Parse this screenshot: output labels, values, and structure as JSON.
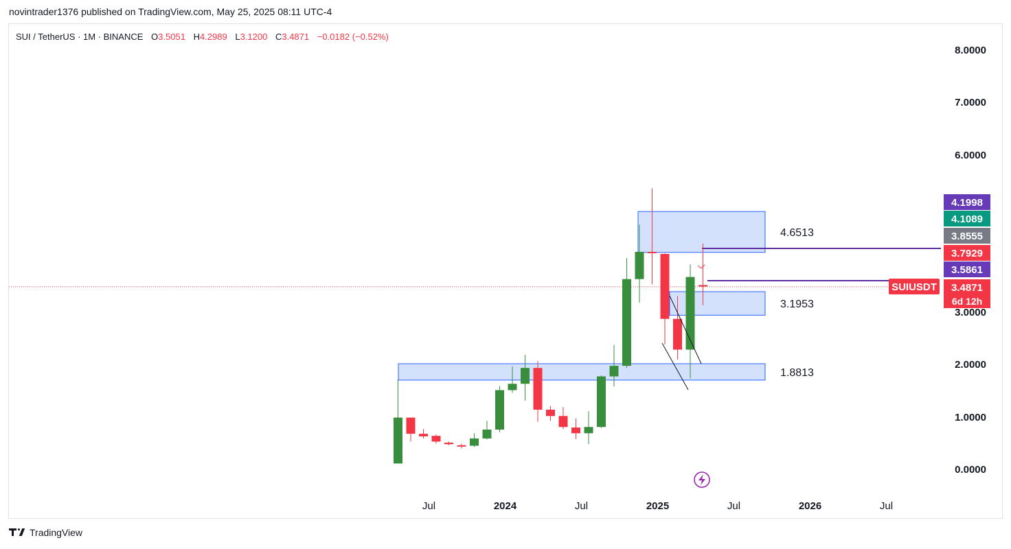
{
  "header": {
    "published": "novintrader1376 published on TradingView.com, May 25, 2025 08:11 UTC-4"
  },
  "legend": {
    "symbol": "SUI / TetherUS · 1M · BINANCE",
    "o_label": "O",
    "o_value": "3.5051",
    "h_label": "H",
    "h_value": "4.2989",
    "l_label": "L",
    "l_value": "3.1200",
    "c_label": "C",
    "c_value": "3.4871",
    "change": "−0.0182 (−0.52%)"
  },
  "footer": {
    "brand": "TradingView"
  },
  "colors": {
    "up": "#388e3c",
    "down": "#f23645",
    "zone_fill": "#cddcfb",
    "zone_border": "#2962ff",
    "line": "#5b2c9f"
  },
  "chart_data": {
    "type": "candlestick",
    "symbol": "SUIUSDT",
    "interval": "1M",
    "yaxis_ticks": [
      0,
      1,
      2,
      3,
      6,
      7,
      8
    ],
    "ytick_labels": [
      "0.0000",
      "1.0000",
      "2.0000",
      "3.0000",
      "6.0000",
      "7.0000",
      "8.0000"
    ],
    "xaxis_ticks": [
      {
        "label": "Jul",
        "date": "2023-07"
      },
      {
        "label": "2024",
        "date": "2024-01"
      },
      {
        "label": "Jul",
        "date": "2024-07"
      },
      {
        "label": "2025",
        "date": "2025-01"
      },
      {
        "label": "Jul",
        "date": "2025-07"
      },
      {
        "label": "2026",
        "date": "2026-01"
      },
      {
        "label": "Jul",
        "date": "2026-07"
      }
    ],
    "candles": [
      {
        "date": "2023-05",
        "o": 0.1,
        "h": 1.7,
        "l": 0.1,
        "c": 0.98
      },
      {
        "date": "2023-06",
        "o": 0.98,
        "h": 0.98,
        "l": 0.52,
        "c": 0.67
      },
      {
        "date": "2023-07",
        "o": 0.67,
        "h": 0.76,
        "l": 0.58,
        "c": 0.62
      },
      {
        "date": "2023-08",
        "o": 0.63,
        "h": 0.66,
        "l": 0.48,
        "c": 0.52
      },
      {
        "date": "2023-09",
        "o": 0.5,
        "h": 0.52,
        "l": 0.45,
        "c": 0.47
      },
      {
        "date": "2023-10",
        "o": 0.45,
        "h": 0.48,
        "l": 0.39,
        "c": 0.44
      },
      {
        "date": "2023-11",
        "o": 0.44,
        "h": 0.68,
        "l": 0.42,
        "c": 0.58
      },
      {
        "date": "2023-12",
        "o": 0.58,
        "h": 0.92,
        "l": 0.56,
        "c": 0.75
      },
      {
        "date": "2024-01",
        "o": 0.75,
        "h": 1.58,
        "l": 0.7,
        "c": 1.5
      },
      {
        "date": "2024-02",
        "o": 1.5,
        "h": 1.95,
        "l": 1.45,
        "c": 1.62
      },
      {
        "date": "2024-03",
        "o": 1.62,
        "h": 2.17,
        "l": 1.3,
        "c": 1.92
      },
      {
        "date": "2024-04",
        "o": 1.92,
        "h": 2.05,
        "l": 0.9,
        "c": 1.13
      },
      {
        "date": "2024-05",
        "o": 1.13,
        "h": 1.2,
        "l": 0.92,
        "c": 1.01
      },
      {
        "date": "2024-06",
        "o": 1.01,
        "h": 1.18,
        "l": 0.76,
        "c": 0.8
      },
      {
        "date": "2024-07",
        "o": 0.79,
        "h": 0.96,
        "l": 0.57,
        "c": 0.68
      },
      {
        "date": "2024-08",
        "o": 0.68,
        "h": 1.1,
        "l": 0.47,
        "c": 0.8
      },
      {
        "date": "2024-09",
        "o": 0.8,
        "h": 1.78,
        "l": 0.78,
        "c": 1.76
      },
      {
        "date": "2024-10",
        "o": 1.76,
        "h": 2.36,
        "l": 1.57,
        "c": 1.96
      },
      {
        "date": "2024-11",
        "o": 1.96,
        "h": 4.02,
        "l": 1.92,
        "c": 3.62
      },
      {
        "date": "2024-12",
        "o": 3.62,
        "h": 4.66,
        "l": 3.17,
        "c": 4.14
      },
      {
        "date": "2025-01",
        "o": 4.14,
        "h": 5.35,
        "l": 3.52,
        "c": 4.12
      },
      {
        "date": "2025-02",
        "o": 4.1,
        "h": 4.11,
        "l": 2.37,
        "c": 2.86
      },
      {
        "date": "2025-03",
        "o": 2.86,
        "h": 3.3,
        "l": 2.08,
        "c": 2.27
      },
      {
        "date": "2025-04",
        "o": 2.27,
        "h": 3.9,
        "l": 1.72,
        "c": 3.66
      },
      {
        "date": "2025-05",
        "o": 3.5051,
        "h": 4.2989,
        "l": 3.12,
        "c": 3.4871
      }
    ],
    "zones": [
      {
        "label": "4.6513",
        "low": 4.13,
        "high": 4.91
      },
      {
        "label": "3.1953",
        "low": 2.93,
        "high": 3.38
      },
      {
        "label": "1.8813",
        "low": 1.69,
        "high": 2.0
      }
    ],
    "price_labels": [
      {
        "text": "4.1998",
        "color": "#673ab7"
      },
      {
        "text": "4.1089",
        "color": "#089981"
      },
      {
        "text": "3.8555",
        "color": "#787b86"
      },
      {
        "text": "3.7929",
        "color": "#f23645"
      },
      {
        "text": "3.5861",
        "color": "#673ab7"
      },
      {
        "text": "3.4871",
        "color": "#f23645"
      }
    ],
    "last_price": {
      "symbol": "SUIUSDT",
      "price": "3.4871",
      "countdown": "6d 12h"
    }
  }
}
